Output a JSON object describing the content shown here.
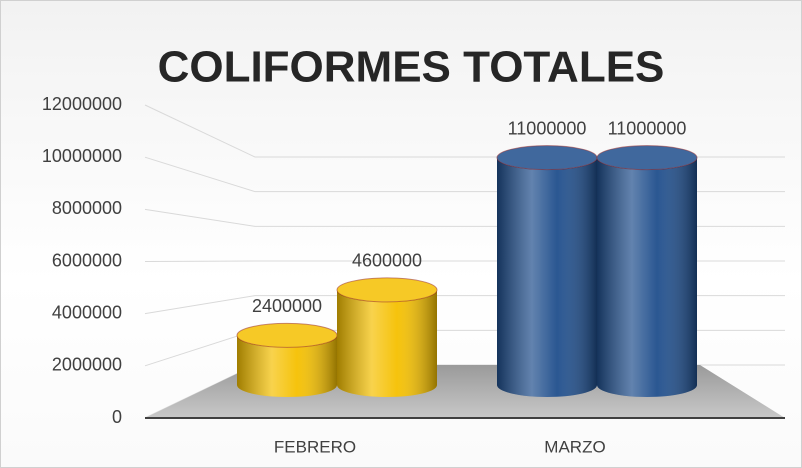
{
  "chart_data": {
    "type": "cylinder",
    "title": "COLIFORMES TOTALES",
    "categories": [
      "FEBRERO",
      "MARZO"
    ],
    "category_colors": [
      "#f5c000",
      "#1f4e8c"
    ],
    "series": [
      {
        "values": [
          2400000,
          11000000
        ]
      },
      {
        "values": [
          4600000,
          11000000
        ]
      }
    ],
    "ylim": [
      0,
      12000000
    ],
    "yticks": [
      0,
      2000000,
      4000000,
      6000000,
      8000000,
      10000000,
      12000000
    ],
    "grid": true
  }
}
